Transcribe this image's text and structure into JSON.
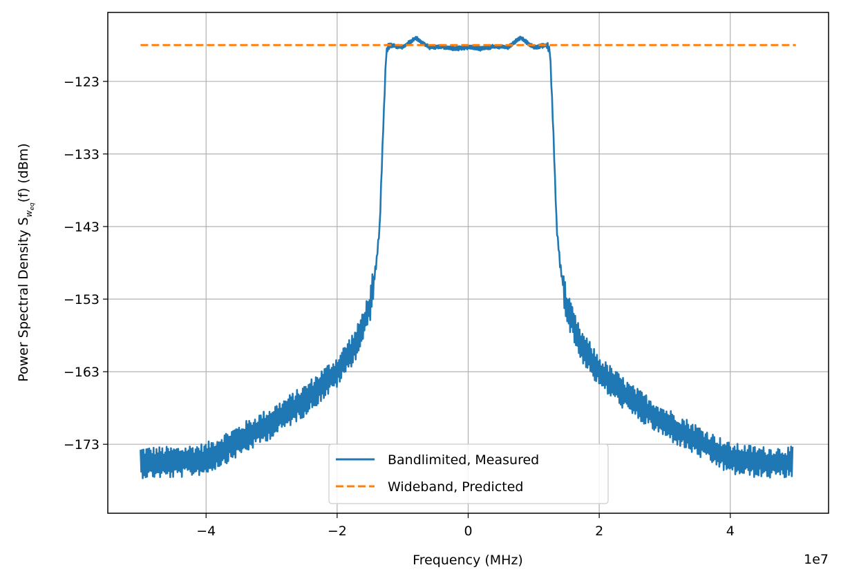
{
  "chart_data": {
    "type": "line",
    "xlabel": "Frequency (MHz)",
    "ylabel": "Power Spectral Density S",
    "ylabel_subscript": "w",
    "ylabel_subsubscript": "eq",
    "ylabel_arg": "(f) (dBm)",
    "x_offset_label": "1e7",
    "xlim": [
      -55000000.0,
      55000000.0
    ],
    "ylim": [
      -182.5,
      -113.5
    ],
    "xticks": [
      -40000000.0,
      -20000000.0,
      0,
      20000000.0,
      40000000.0
    ],
    "xtick_labels": [
      "−4",
      "−2",
      "0",
      "2",
      "4"
    ],
    "yticks": [
      -123,
      -133,
      -143,
      -153,
      -163,
      -173
    ],
    "ytick_labels": [
      "−123",
      "−133",
      "−143",
      "−153",
      "−163",
      "−173"
    ],
    "grid": true,
    "legend_position": "lower center",
    "series": [
      {
        "name": "Bandlimited, Measured",
        "style": "solid",
        "color": "#1f77b4",
        "x": [
          -50000000.0,
          -45000000.0,
          -40000000.0,
          -35000000.0,
          -30000000.0,
          -25000000.0,
          -20000000.0,
          -17000000.0,
          -15000000.0,
          -14000000.0,
          -13500000.0,
          -13000000.0,
          -12500000.0,
          -12000000.0,
          -10000000.0,
          -8000000.0,
          -6000000.0,
          -4000000.0,
          -2000000.0,
          0,
          2000000.0,
          4000000.0,
          6000000.0,
          8000000.0,
          10000000.0,
          12000000.0,
          12500000.0,
          13000000.0,
          13500000.0,
          14000000.0,
          15000000.0,
          17000000.0,
          20000000.0,
          25000000.0,
          30000000.0,
          35000000.0,
          40000000.0,
          45000000.0,
          50000000.0
        ],
        "y": [
          -175.5,
          -175.5,
          -175,
          -172.5,
          -170,
          -167,
          -163,
          -159,
          -154,
          -148,
          -143,
          -130,
          -119,
          -118,
          -118.3,
          -117,
          -118.3,
          -118.2,
          -118.5,
          -118.3,
          -118.5,
          -118.2,
          -118.3,
          -117,
          -118.3,
          -118,
          -119,
          -130,
          -143,
          -148,
          -154,
          -159,
          -163,
          -167,
          -170,
          -172.5,
          -175,
          -175.5,
          -175.5
        ]
      },
      {
        "name": "Wideband, Predicted",
        "style": "dashed",
        "color": "#ff7f0e",
        "x": [
          -50000000.0,
          50000000.0
        ],
        "y": [
          -118,
          -118
        ]
      }
    ]
  }
}
